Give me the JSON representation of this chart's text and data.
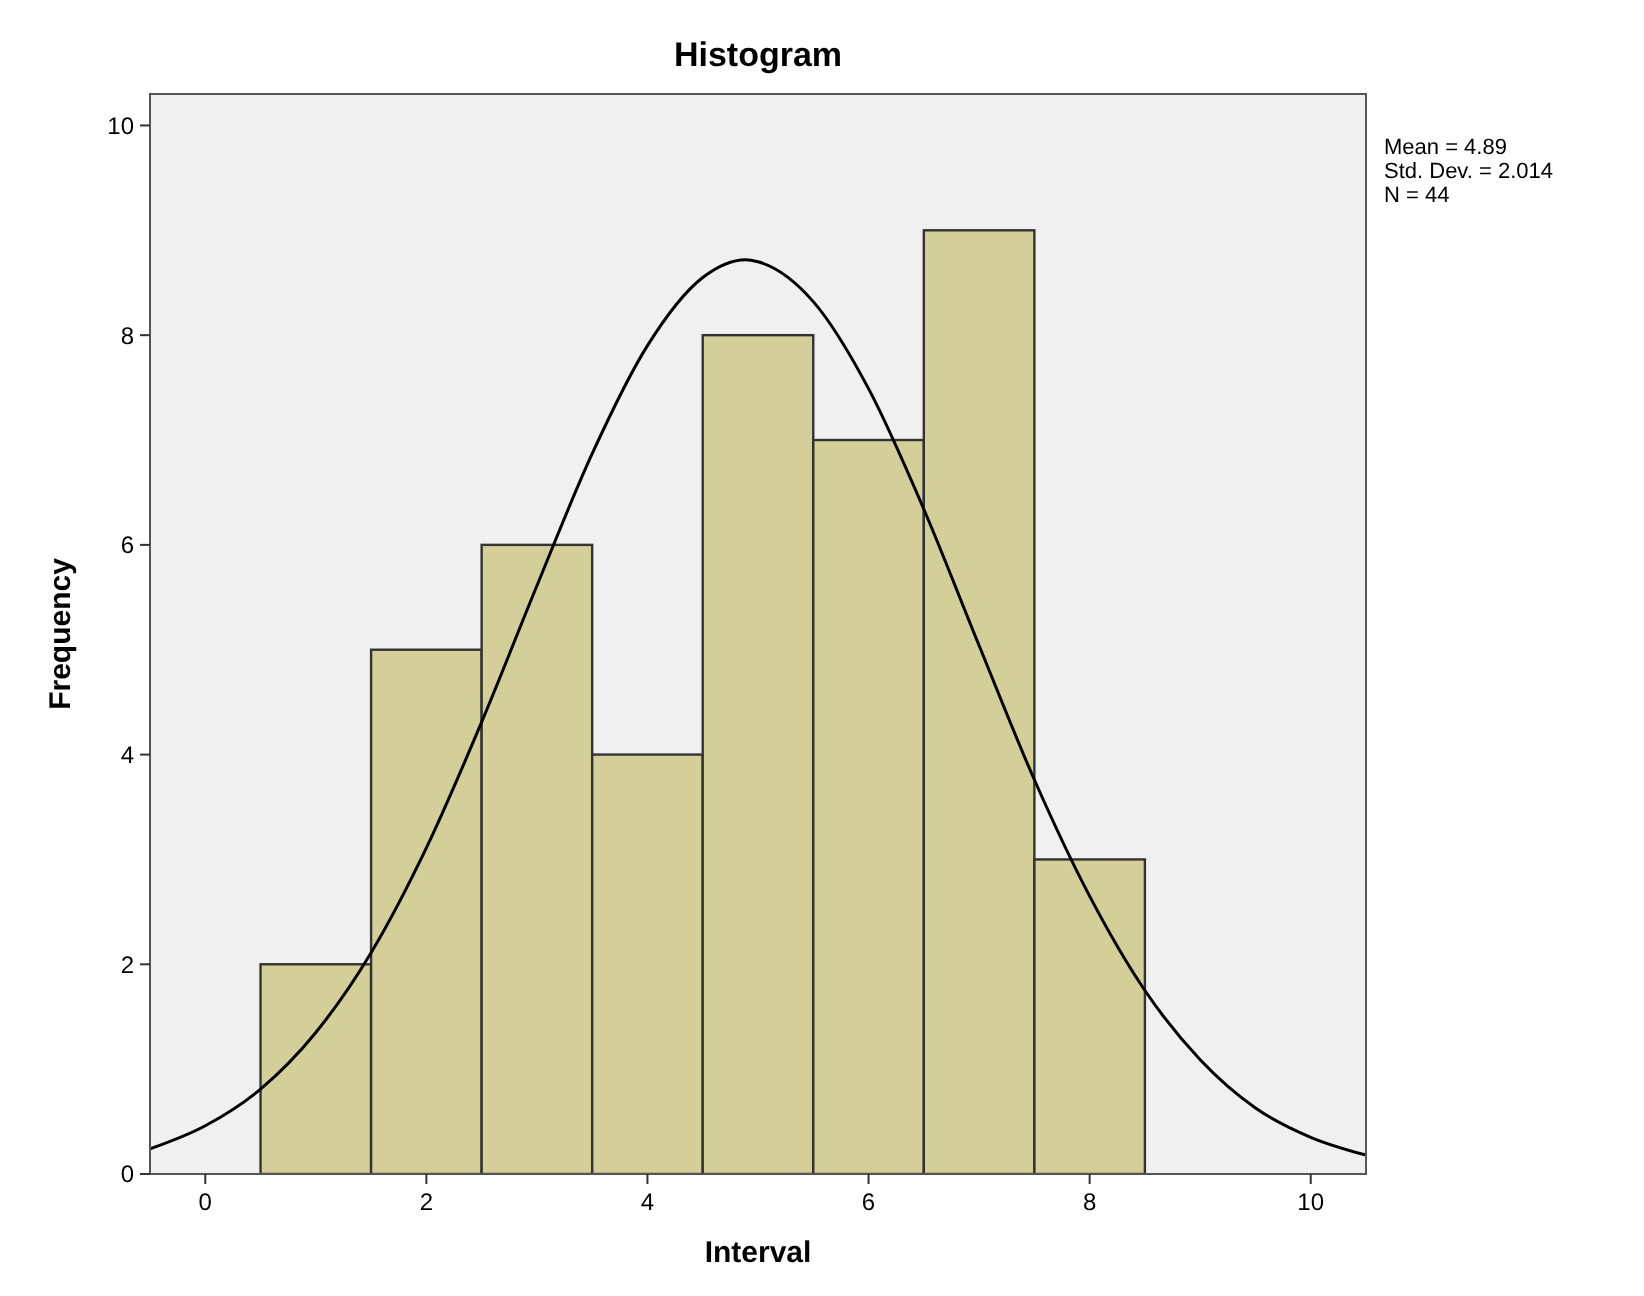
{
  "chart_data": {
    "type": "histogram",
    "title": "Histogram",
    "xlabel": "Interval",
    "ylabel": "Frequency",
    "bins": [
      0.5,
      1.5,
      2.5,
      3.5,
      4.5,
      5.5,
      6.5,
      7.5,
      8.5
    ],
    "series": [
      {
        "color": "#d4cf98",
        "values": [
          2,
          5,
          6,
          4,
          8,
          7,
          9,
          3
        ]
      },
      {
        "type": "line",
        "color": "#000000",
        "x": [
          -0.5,
          0,
          0.5,
          1,
          1.5,
          2,
          2.5,
          3,
          3.5,
          4,
          4.5,
          4.89,
          5,
          5.5,
          6,
          6.5,
          7,
          7.5,
          8,
          8.5,
          9,
          9.5,
          10,
          10.5
        ],
        "values": [
          0.24,
          0.46,
          0.81,
          1.35,
          2.11,
          3.11,
          4.31,
          5.61,
          6.87,
          7.9,
          8.55,
          8.72,
          8.7,
          8.32,
          7.49,
          6.34,
          5.04,
          3.76,
          2.65,
          1.75,
          1.09,
          0.63,
          0.35,
          0.18
        ]
      }
    ],
    "xlim": [
      -0.5,
      10.5
    ],
    "xticks": [
      0,
      2,
      4,
      6,
      8,
      10
    ],
    "ylim": [
      0,
      10.3
    ],
    "yticks": [
      0,
      2,
      4,
      6,
      8,
      10
    ],
    "grid": false,
    "marker": "none",
    "annotations": [
      "Mean = 4.89",
      "Std. Dev. = 2.014",
      "N = 44"
    ]
  }
}
